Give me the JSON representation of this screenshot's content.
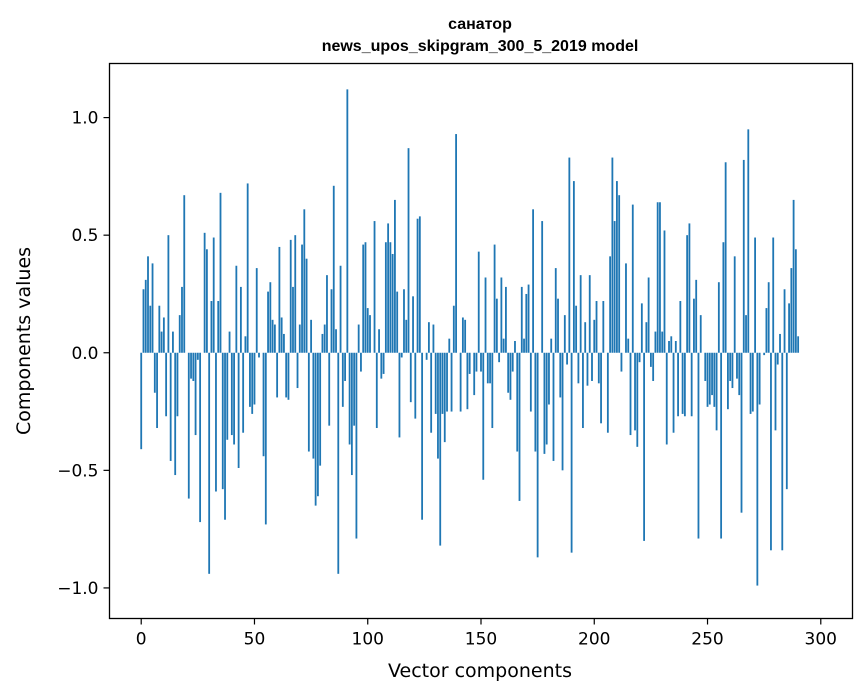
{
  "chart_data": {
    "type": "bar",
    "title": "санатор",
    "subtitle": "news_upos_skipgram_300_5_2019 model",
    "xlabel": "Vector components",
    "ylabel": "Components values",
    "xlim": [
      -14,
      314
    ],
    "ylim": [
      -1.13,
      1.23
    ],
    "xticks": [
      0,
      50,
      100,
      150,
      200,
      250,
      300
    ],
    "xtick_labels": [
      "0",
      "50",
      "100",
      "150",
      "200",
      "250",
      "300"
    ],
    "yticks": [
      -1.0,
      -0.5,
      0.0,
      0.5,
      1.0
    ],
    "ytick_labels": [
      "−1.0",
      "−0.5",
      "0.0",
      "0.5",
      "1.0"
    ],
    "bar_color": "#1f77b4",
    "series": [
      {
        "name": "санатор",
        "x_start": 0,
        "values": [
          -0.41,
          0.27,
          0.31,
          0.41,
          0.2,
          0.38,
          -0.17,
          -0.32,
          0.2,
          0.09,
          0.15,
          -0.27,
          0.5,
          -0.46,
          0.09,
          -0.52,
          -0.27,
          0.16,
          0.28,
          0.67,
          0.0,
          -0.62,
          -0.11,
          -0.12,
          -0.35,
          -0.03,
          -0.72,
          0.0,
          0.51,
          0.44,
          -0.94,
          0.22,
          0.49,
          -0.59,
          0.22,
          0.68,
          -0.58,
          -0.71,
          -0.37,
          0.09,
          -0.35,
          -0.39,
          0.37,
          -0.49,
          0.28,
          -0.34,
          0.07,
          0.72,
          -0.23,
          -0.26,
          -0.22,
          0.36,
          -0.02,
          0.0,
          -0.44,
          -0.73,
          0.26,
          0.3,
          0.14,
          0.12,
          -0.19,
          0.45,
          0.15,
          0.08,
          -0.19,
          -0.2,
          0.48,
          0.28,
          0.5,
          -0.15,
          0.12,
          0.46,
          0.61,
          0.4,
          -0.42,
          0.14,
          -0.45,
          -0.65,
          -0.61,
          -0.48,
          0.08,
          0.12,
          0.33,
          -0.31,
          0.27,
          0.71,
          0.1,
          -0.94,
          0.37,
          -0.23,
          -0.12,
          1.12,
          -0.39,
          -0.52,
          -0.31,
          -0.79,
          0.12,
          -0.08,
          0.46,
          0.47,
          0.19,
          0.16,
          0.0,
          0.56,
          -0.32,
          0.1,
          -0.11,
          -0.09,
          0.47,
          0.55,
          0.47,
          0.42,
          0.65,
          0.26,
          -0.36,
          -0.02,
          0.27,
          0.14,
          0.87,
          -0.21,
          0.24,
          -0.28,
          0.57,
          0.58,
          -0.71,
          0.0,
          -0.03,
          0.13,
          -0.34,
          0.12,
          -0.26,
          -0.45,
          -0.82,
          -0.26,
          -0.38,
          -0.25,
          0.06,
          -0.25,
          0.2,
          0.93,
          0.0,
          -0.25,
          0.15,
          0.14,
          -0.24,
          -0.09,
          0.0,
          -0.18,
          -0.08,
          0.43,
          -0.08,
          -0.54,
          0.32,
          -0.13,
          -0.13,
          -0.32,
          0.46,
          0.23,
          -0.04,
          0.32,
          0.06,
          0.28,
          -0.17,
          -0.2,
          -0.08,
          0.05,
          -0.42,
          -0.63,
          0.28,
          0.06,
          0.25,
          0.29,
          -0.25,
          0.61,
          -0.42,
          -0.87,
          0.0,
          0.56,
          -0.43,
          -0.39,
          -0.22,
          0.06,
          -0.46,
          0.36,
          0.23,
          -0.19,
          -0.5,
          0.16,
          -0.05,
          0.83,
          -0.85,
          0.73,
          0.2,
          -0.13,
          0.33,
          -0.32,
          0.13,
          -0.14,
          0.33,
          -0.12,
          0.14,
          0.22,
          -0.13,
          -0.3,
          0.22,
          0.0,
          -0.34,
          0.41,
          0.83,
          0.56,
          0.73,
          0.67,
          -0.08,
          0.0,
          0.38,
          0.06,
          -0.35,
          0.63,
          -0.33,
          -0.4,
          -0.04,
          0.21,
          -0.8,
          0.13,
          0.32,
          -0.06,
          -0.12,
          0.09,
          0.64,
          0.64,
          0.09,
          0.52,
          -0.39,
          0.05,
          0.07,
          -0.34,
          0.05,
          -0.27,
          0.22,
          -0.26,
          -0.27,
          0.5,
          0.55,
          -0.27,
          0.23,
          0.31,
          -0.79,
          0.16,
          0.0,
          -0.12,
          -0.23,
          -0.22,
          -0.18,
          -0.23,
          -0.33,
          0.3,
          -0.79,
          0.47,
          0.81,
          -0.24,
          -0.12,
          -0.15,
          0.41,
          -0.11,
          -0.18,
          -0.68,
          0.82,
          0.16,
          0.95,
          -0.26,
          -0.25,
          0.49,
          -0.99,
          -0.22,
          0.0,
          -0.01,
          0.19,
          0.3,
          -0.84,
          0.49,
          -0.33,
          -0.05,
          0.08,
          -0.84,
          0.27,
          -0.58,
          0.21,
          0.36,
          0.65,
          0.44,
          0.07
        ]
      }
    ]
  }
}
